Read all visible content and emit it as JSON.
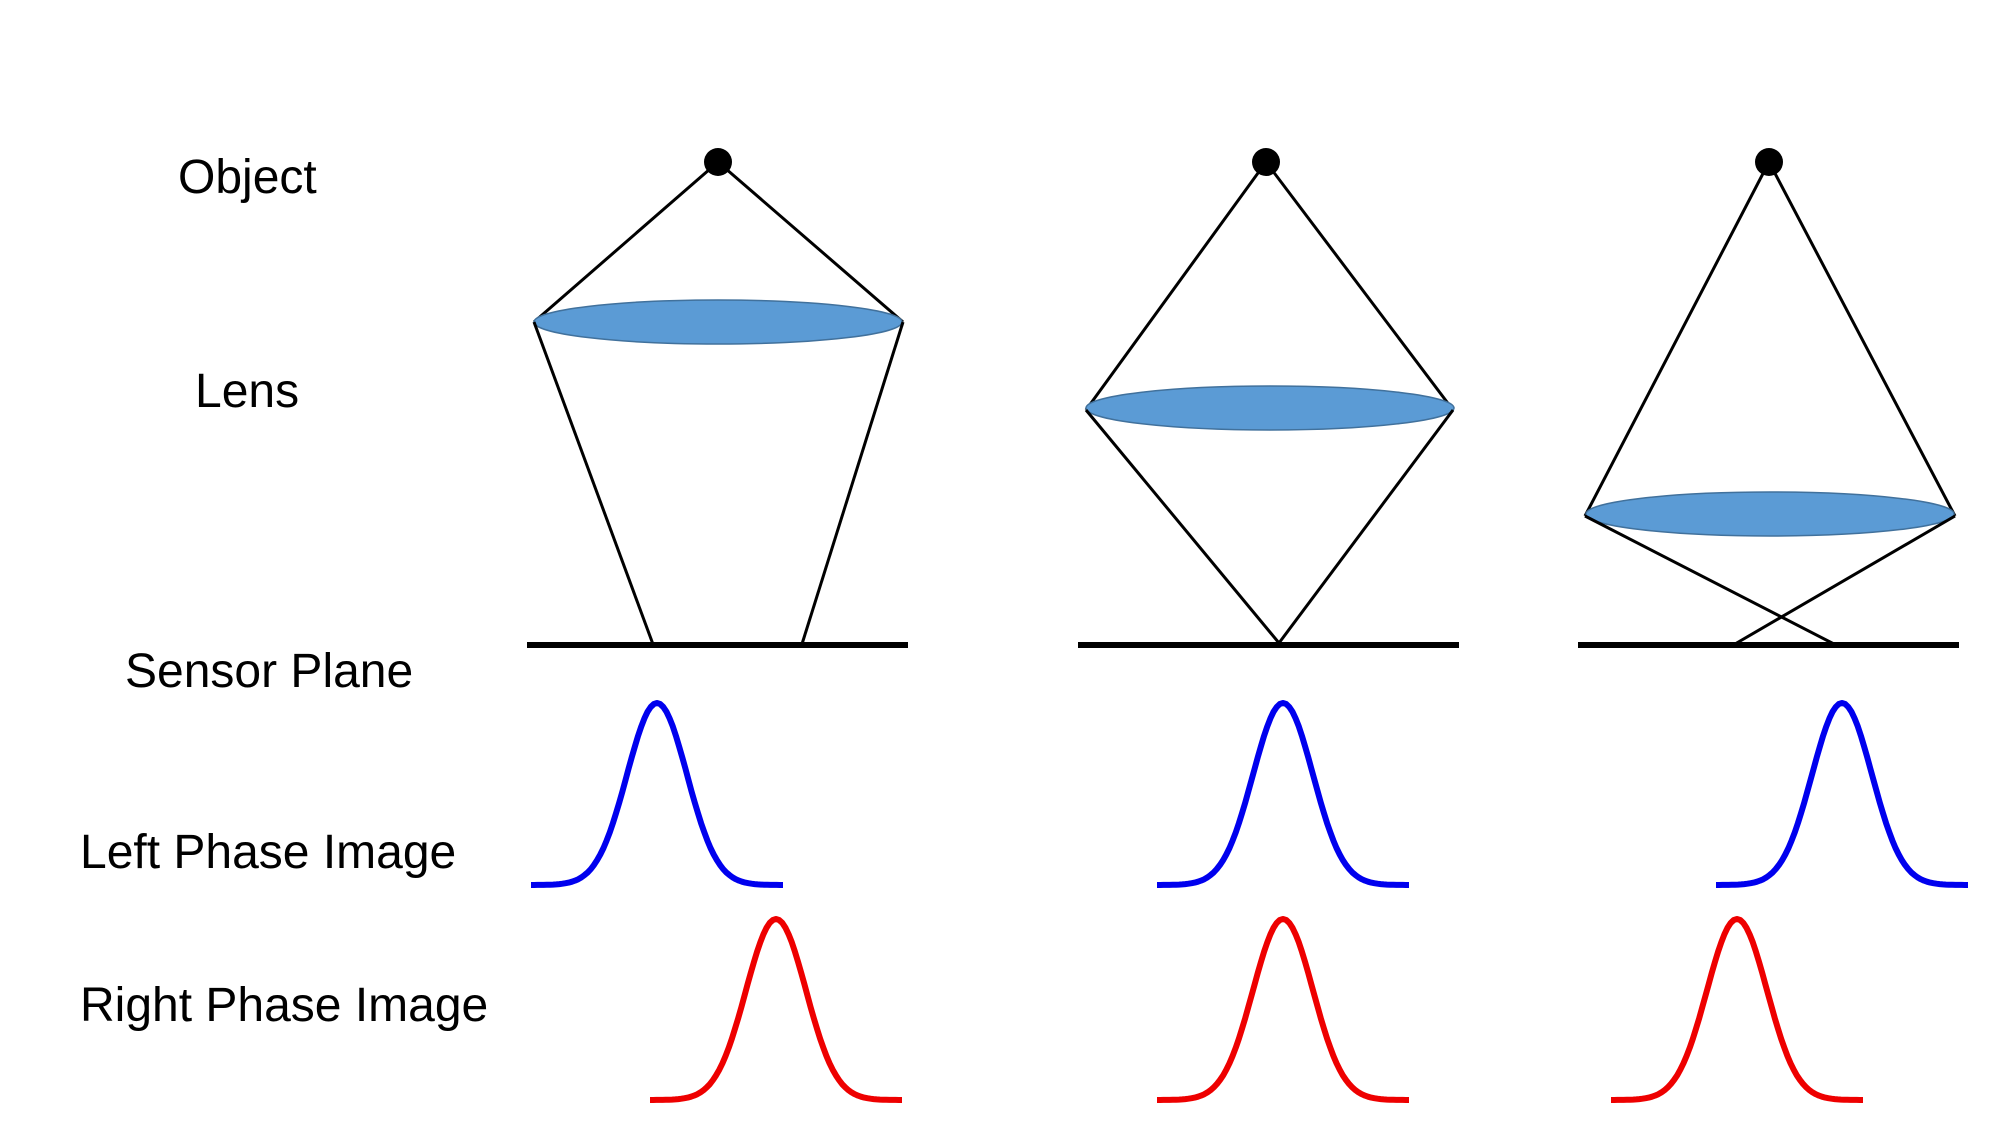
{
  "labels": {
    "object": "Object",
    "lens": "Lens",
    "sensor": "Sensor Plane",
    "left_phase": "Left Phase Image",
    "right_phase": "Right Phase Image"
  },
  "colors": {
    "lens_fill": "#5b9bd5",
    "lens_stroke": "#41719c",
    "ray": "#000000",
    "left_curve": "#0000ee",
    "right_curve": "#ee0000"
  }
}
